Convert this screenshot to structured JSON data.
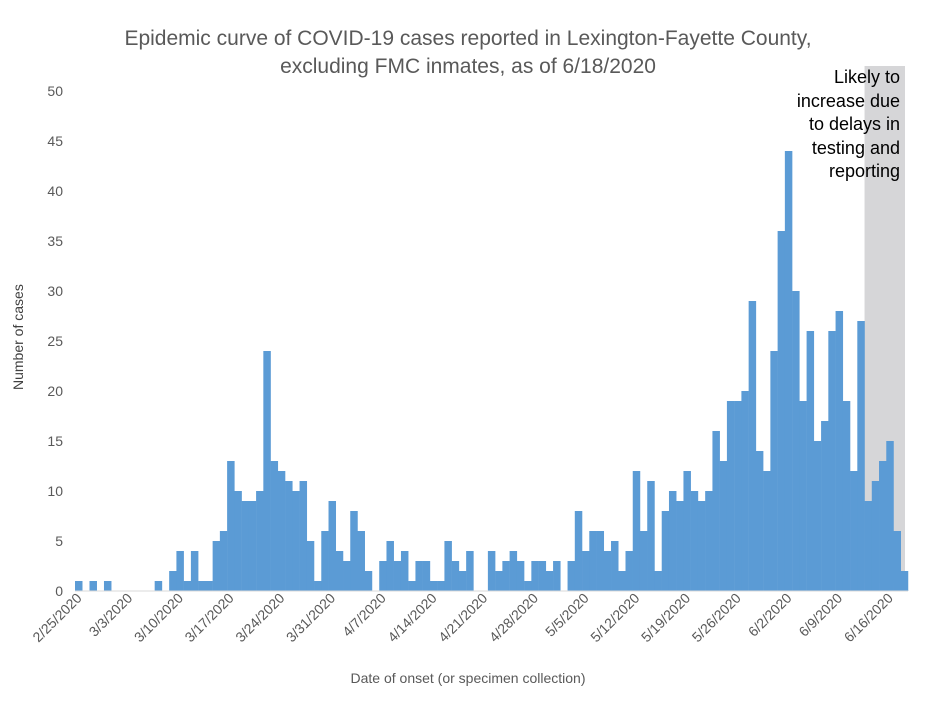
{
  "chart_data": {
    "type": "bar",
    "title_lines": [
      "Epidemic curve of COVID-19 cases reported in Lexington-Fayette County,",
      "excluding FMC inmates, as of 6/18/2020"
    ],
    "xlabel": "Date of onset (or specimen collection)",
    "ylabel": "Number of cases",
    "ylim": [
      0,
      50
    ],
    "yticks": [
      0,
      5,
      10,
      15,
      20,
      25,
      30,
      35,
      40,
      45,
      50
    ],
    "grid": false,
    "start_date": "2/25/2020",
    "x_tick_labels": [
      "2/25/2020",
      "3/3/2020",
      "3/10/2020",
      "3/17/2020",
      "3/24/2020",
      "3/31/2020",
      "4/7/2020",
      "4/14/2020",
      "4/21/2020",
      "4/28/2020",
      "5/5/2020",
      "5/12/2020",
      "5/19/2020",
      "5/26/2020",
      "6/2/2020",
      "6/9/2020",
      "6/16/2020"
    ],
    "values": [
      1,
      0,
      1,
      0,
      1,
      0,
      0,
      0,
      0,
      0,
      0,
      1,
      0,
      2,
      4,
      1,
      4,
      1,
      1,
      5,
      6,
      13,
      10,
      9,
      9,
      10,
      24,
      13,
      12,
      11,
      10,
      11,
      5,
      1,
      6,
      9,
      4,
      3,
      8,
      6,
      2,
      0,
      3,
      5,
      3,
      4,
      1,
      3,
      3,
      1,
      1,
      5,
      3,
      2,
      4,
      0,
      0,
      4,
      2,
      3,
      4,
      3,
      1,
      3,
      3,
      2,
      3,
      0,
      3,
      8,
      4,
      6,
      6,
      4,
      5,
      2,
      4,
      12,
      6,
      11,
      2,
      8,
      10,
      9,
      12,
      10,
      9,
      10,
      16,
      13,
      19,
      19,
      20,
      29,
      14,
      12,
      24,
      36,
      44,
      30,
      19,
      26,
      15,
      17,
      26,
      28,
      19,
      12,
      27,
      9,
      11,
      13,
      15,
      6,
      2
    ],
    "annotation": {
      "lines": [
        "Likely to",
        "increase due",
        "to delays in",
        "testing and",
        "reporting"
      ],
      "shaded_from_date": "6/13/2020"
    },
    "colors": {
      "bar": "#5b9bd5",
      "shade": "#b4b4b8",
      "axis_text": "#595959"
    }
  }
}
